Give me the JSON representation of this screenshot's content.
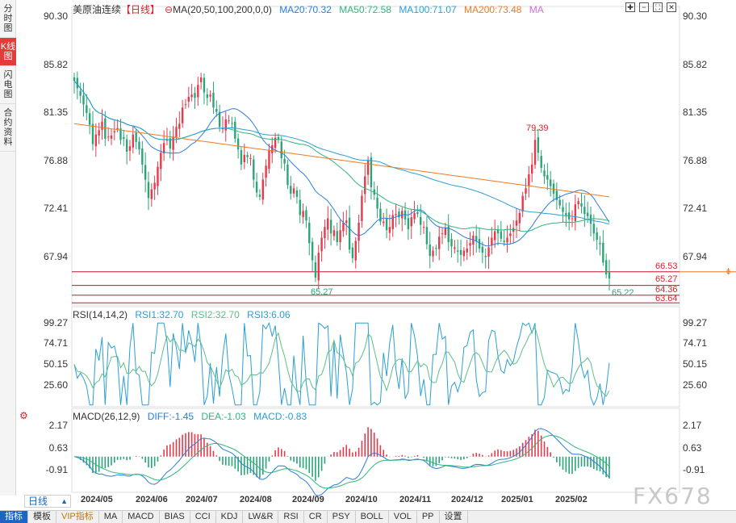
{
  "colors": {
    "up": "#e8394a",
    "down": "#2aa577",
    "ma20": "#2a7de1",
    "ma50": "#2fb57c",
    "ma100": "#2a9fd6",
    "ma200": "#f07a23",
    "ma_extra": "#d16bd4",
    "rsi1": "#2a9fd6",
    "rsi2": "#5bbf8a",
    "diff": "#2a7de1",
    "dea": "#2fb57c",
    "hline": "#c8102e"
  },
  "left_rail": [
    {
      "label": "分时图",
      "icon": "rail-tab"
    },
    {
      "label": "K线图",
      "icon": "rail-tab"
    },
    {
      "label": "闪电图",
      "icon": "rail-tab"
    },
    {
      "label": "合约资料",
      "icon": "rail-tab"
    }
  ],
  "left_rail_active": 1,
  "header": {
    "symbol": "美原油连续",
    "period_tag": "【日线】",
    "ma_settings": "MA(20,50,100,200,0,0)",
    "ma20": "MA20:70.32",
    "ma50": "MA50:72.58",
    "ma100": "MA100:71.07",
    "ma200": "MA200:73.48",
    "ma_extra": "MA"
  },
  "rsi_header": {
    "settings": "RSI(14,14,2)",
    "rsi1": "RSI1:32.70",
    "rsi2": "RSI2:32.70",
    "rsi3": "RSI3:6.06"
  },
  "macd_header": {
    "settings": "MACD(26,12,9)",
    "diff": "DIFF:-1.45",
    "dea": "DEA:-1.03",
    "macd": "MACD:-0.83"
  },
  "tool_icons": [
    "expand-icon",
    "shrink-icon",
    "fullscreen-icon",
    "close-icon"
  ],
  "price_axis": {
    "left": [
      "90.30",
      "85.82",
      "81.35",
      "76.88",
      "72.41",
      "67.94"
    ],
    "right": [
      "90.30",
      "85.82",
      "81.35",
      "76.88",
      "72.41",
      "67.94"
    ]
  },
  "rsi_axis": [
    "99.27",
    "74.71",
    "50.15",
    "25.60"
  ],
  "macd_axis": [
    "2.17",
    "0.63",
    "-0.91"
  ],
  "price_tags": {
    "high": "79.39",
    "low_left": "65.27",
    "low_right": "65.22",
    "line1": "66.53",
    "line2": "65.27",
    "line3": "64.36",
    "line4": "63.64"
  },
  "dates": [
    "2024/05",
    "2024/06",
    "2024/07",
    "2024/08",
    "2024/09",
    "2024/10",
    "2024/11",
    "2024/12",
    "2025/01",
    "2025/02"
  ],
  "period_select": "日线",
  "bottom_tabs": [
    "指标",
    "模板",
    "VIP指标",
    "MA",
    "MACD",
    "BIAS",
    "CCI",
    "KDJ",
    "LW&R",
    "RSI",
    "CR",
    "PSY",
    "BOLL",
    "VOL",
    "PP",
    "设置"
  ],
  "bottom_active": 0,
  "watermark": "FX678",
  "chart_data": {
    "type": "candlestick",
    "price_range": [
      63.0,
      91.3
    ],
    "closes": [
      84.3,
      83.6,
      82.9,
      82.1,
      81.3,
      80.2,
      78.4,
      79.3,
      79.7,
      80.5,
      78.9,
      79.1,
      79.2,
      79.6,
      79.9,
      78.8,
      78.9,
      77.7,
      78.2,
      79.3,
      78.6,
      77.9,
      76.5,
      75.1,
      73.4,
      74.2,
      74.8,
      76.3,
      77.6,
      78.5,
      78.8,
      78.0,
      79.1,
      80.0,
      80.3,
      81.8,
      82.1,
      82.8,
      83.0,
      82.7,
      83.9,
      84.6,
      83.2,
      82.7,
      83.0,
      81.8,
      81.4,
      80.0,
      79.9,
      80.7,
      80.6,
      80.3,
      78.9,
      77.9,
      76.5,
      77.4,
      77.2,
      77.1,
      75.1,
      73.9,
      73.5,
      75.1,
      76.4,
      77.8,
      78.3,
      79.0,
      78.8,
      77.1,
      76.6,
      74.6,
      73.8,
      74.3,
      73.5,
      71.8,
      72.2,
      71.3,
      69.2,
      67.6,
      66.0,
      68.3,
      69.7,
      70.7,
      71.5,
      70.1,
      70.4,
      69.3,
      70.4,
      71.1,
      71.3,
      68.6,
      67.8,
      69.4,
      71.1,
      73.6,
      75.4,
      76.9,
      74.4,
      73.7,
      72.4,
      71.2,
      71.2,
      70.4,
      70.7,
      71.8,
      71.9,
      71.6,
      72.2,
      71.4,
      70.5,
      71.6,
      72.0,
      71.9,
      70.9,
      70.7,
      69.1,
      68.0,
      68.5,
      68.7,
      69.8,
      70.1,
      70.6,
      69.3,
      68.9,
      68.8,
      68.4,
      68.1,
      68.5,
      68.7,
      69.2,
      69.9,
      69.4,
      68.7,
      68.3,
      67.9,
      68.8,
      69.7,
      70.3,
      70.1,
      69.6,
      69.3,
      69.7,
      70.1,
      70.6,
      71.3,
      72.0,
      73.6,
      74.3,
      75.6,
      76.5,
      78.8,
      77.6,
      76.2,
      75.4,
      75.1,
      74.5,
      73.8,
      73.2,
      72.7,
      72.1,
      71.8,
      71.4,
      71.5,
      72.8,
      73.1,
      72.6,
      71.9,
      71.7,
      71.0,
      70.1,
      69.5,
      69.1,
      67.4,
      66.3,
      65.9
    ]
  }
}
